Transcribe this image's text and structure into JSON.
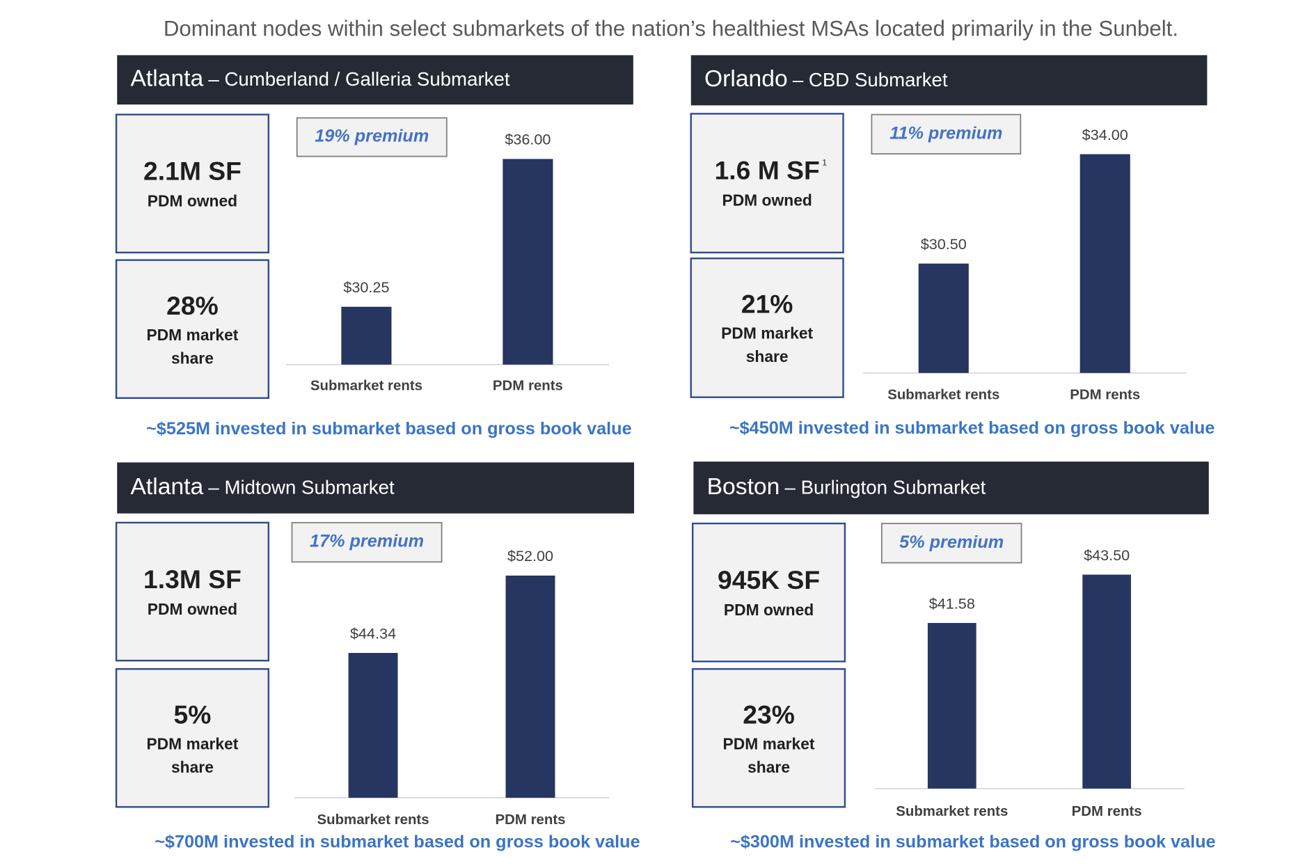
{
  "title": "Dominant nodes within select submarkets of the nation’s healthiest MSAs located primarily in the Sunbelt.",
  "chart_data": [
    {
      "type": "bar",
      "title": "Atlanta",
      "subtitle": "– Cumberland / Galleria Submarket",
      "stats": [
        {
          "value": "2.1M SF",
          "label_lines": [
            "PDM owned"
          ]
        },
        {
          "value": "28%",
          "label_lines": [
            "PDM market",
            "share"
          ]
        }
      ],
      "annotation": "19% premium",
      "categories": [
        "Submarket rents",
        "PDM rents"
      ],
      "values": [
        30.25,
        36.0
      ],
      "value_labels": [
        "$30.25",
        "$36.00"
      ],
      "color": "#263660",
      "ylim": [
        28,
        37.5
      ],
      "note": "~$525M invested in submarket based on gross book value"
    },
    {
      "type": "bar",
      "title": "Orlando",
      "subtitle": "– CBD Submarket",
      "stats": [
        {
          "value": "1.6 M SF",
          "footnote_marker": "1",
          "label_lines": [
            "PDM owned"
          ]
        },
        {
          "value": "21%",
          "label_lines": [
            "PDM market",
            "share"
          ]
        }
      ],
      "annotation": "11% premium",
      "categories": [
        "Submarket rents",
        "PDM rents"
      ],
      "values": [
        30.5,
        34.0
      ],
      "value_labels": [
        "$30.50",
        "$34.00"
      ],
      "color": "#263660",
      "ylim": [
        27,
        35
      ],
      "note": "~$450M invested in submarket based on gross book value"
    },
    {
      "type": "bar",
      "title": "Atlanta",
      "subtitle": "– Midtown Submarket",
      "stats": [
        {
          "value": "1.3M SF",
          "label_lines": [
            "PDM owned"
          ]
        },
        {
          "value": "5%",
          "label_lines": [
            "PDM market",
            "share"
          ]
        }
      ],
      "annotation": "17% premium",
      "categories": [
        "Submarket rents",
        "PDM rents"
      ],
      "values": [
        44.34,
        52.0
      ],
      "value_labels": [
        "$44.34",
        "$52.00"
      ],
      "color": "#263660",
      "ylim": [
        30,
        56
      ],
      "note": "~$700M invested in submarket based on gross book value"
    },
    {
      "type": "bar",
      "title": "Boston",
      "subtitle": "– Burlington Submarket",
      "stats": [
        {
          "value": "945K SF",
          "label_lines": [
            "PDM owned"
          ]
        },
        {
          "value": "23%",
          "label_lines": [
            "PDM market",
            "share"
          ]
        }
      ],
      "annotation": "5% premium",
      "categories": [
        "Submarket rents",
        "PDM rents"
      ],
      "values": [
        41.58,
        43.5
      ],
      "value_labels": [
        "$41.58",
        "$43.50"
      ],
      "color": "#263660",
      "ylim": [
        35,
        45.5
      ],
      "note": "~$300M invested in submarket based on gross book value"
    }
  ]
}
